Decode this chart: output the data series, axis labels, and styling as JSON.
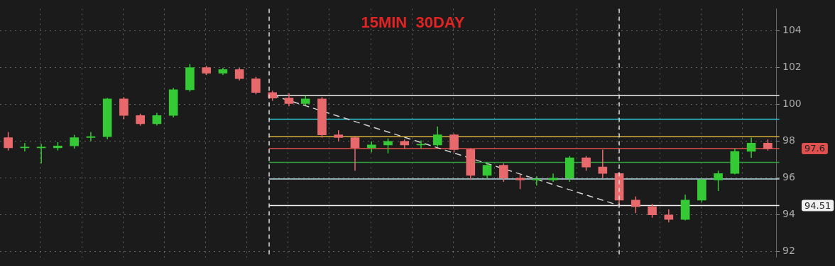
{
  "chart_data": {
    "type": "candlestick",
    "title": "15MIN  30DAY",
    "categories": [
      null,
      null,
      null,
      null,
      null,
      null,
      null,
      null,
      null,
      null,
      null,
      null,
      null,
      null,
      null,
      null,
      null,
      null,
      null,
      null,
      null,
      null,
      null,
      null,
      null,
      null,
      null,
      null,
      null,
      null,
      null,
      null,
      null,
      null,
      null,
      null,
      null,
      null,
      null,
      null,
      null,
      null,
      null,
      null,
      null,
      null,
      null
    ],
    "ohlc": [
      [
        98.2,
        98.5,
        97.5,
        97.65
      ],
      [
        97.65,
        97.9,
        97.45,
        97.65
      ],
      [
        97.65,
        97.85,
        96.8,
        97.65
      ],
      [
        97.65,
        97.95,
        97.5,
        97.75
      ],
      [
        97.75,
        98.35,
        97.6,
        98.2
      ],
      [
        98.2,
        98.5,
        98.0,
        98.25
      ],
      [
        98.25,
        100.35,
        98.1,
        100.3
      ],
      [
        100.3,
        100.4,
        99.2,
        99.4
      ],
      [
        99.4,
        99.5,
        98.85,
        98.95
      ],
      [
        98.95,
        99.55,
        98.85,
        99.4
      ],
      [
        99.4,
        100.9,
        99.3,
        100.8
      ],
      [
        100.8,
        102.2,
        100.7,
        102.0
      ],
      [
        102.0,
        102.1,
        101.6,
        101.7
      ],
      [
        101.7,
        102.0,
        101.6,
        101.9
      ],
      [
        101.9,
        102.0,
        101.3,
        101.4
      ],
      [
        101.4,
        101.5,
        100.55,
        100.65
      ],
      [
        100.65,
        100.75,
        100.2,
        100.35
      ],
      [
        100.35,
        100.6,
        99.9,
        100.05
      ],
      [
        100.05,
        100.5,
        99.95,
        100.3
      ],
      [
        100.3,
        100.4,
        98.2,
        98.35
      ],
      [
        98.35,
        98.6,
        98.0,
        98.2
      ],
      [
        98.2,
        98.3,
        96.4,
        97.65
      ],
      [
        97.65,
        98.0,
        97.4,
        97.8
      ],
      [
        97.8,
        98.15,
        97.35,
        98.0
      ],
      [
        98.0,
        98.1,
        97.6,
        97.8
      ],
      [
        97.8,
        98.05,
        97.6,
        97.8
      ],
      [
        97.8,
        98.8,
        97.7,
        98.35
      ],
      [
        98.35,
        98.4,
        97.4,
        97.55
      ],
      [
        97.55,
        97.6,
        95.9,
        96.15
      ],
      [
        96.15,
        96.85,
        95.95,
        96.7
      ],
      [
        96.7,
        96.8,
        95.8,
        96.0
      ],
      [
        96.0,
        96.2,
        95.4,
        95.9
      ],
      [
        95.9,
        96.1,
        95.6,
        95.9
      ],
      [
        95.9,
        96.25,
        95.8,
        96.0
      ],
      [
        96.0,
        97.2,
        95.8,
        97.1
      ],
      [
        97.1,
        97.2,
        96.4,
        96.6
      ],
      [
        96.6,
        97.55,
        96.0,
        96.25
      ],
      [
        96.25,
        96.3,
        94.5,
        94.8
      ],
      [
        94.8,
        95.0,
        94.1,
        94.45
      ],
      [
        94.45,
        94.6,
        93.85,
        94.0
      ],
      [
        94.0,
        94.3,
        93.6,
        93.75
      ],
      [
        93.75,
        95.1,
        93.7,
        94.8
      ],
      [
        94.8,
        96.0,
        94.7,
        95.9
      ],
      [
        95.9,
        96.4,
        95.3,
        96.25
      ],
      [
        96.25,
        97.6,
        96.2,
        97.45
      ],
      [
        97.45,
        98.2,
        97.1,
        97.9
      ],
      [
        97.9,
        98.1,
        97.5,
        97.6
      ]
    ],
    "series": [
      {
        "type": "line",
        "color": "#d0d0d0",
        "line_style": "dashed",
        "values": [
          null,
          null,
          null,
          null,
          null,
          null,
          null,
          null,
          null,
          null,
          null,
          null,
          null,
          null,
          null,
          null,
          100.5,
          null,
          null,
          null,
          null,
          null,
          null,
          null,
          null,
          null,
          null,
          null,
          null,
          null,
          null,
          null,
          null,
          null,
          null,
          null,
          null,
          94.51,
          null,
          null,
          null,
          null,
          null,
          null,
          null,
          null,
          null
        ]
      }
    ],
    "ref_lines": [
      {
        "axis": "y",
        "value": 100.5,
        "color": "#f0f0f0"
      },
      {
        "axis": "y",
        "value": 99.2,
        "color": "#29c5d6"
      },
      {
        "axis": "y",
        "value": 98.25,
        "color": "#d8b23a"
      },
      {
        "axis": "y",
        "value": 97.6,
        "color": "#e0504f",
        "label": "97.6"
      },
      {
        "axis": "y",
        "value": 96.85,
        "color": "#2f9e3f"
      },
      {
        "axis": "y",
        "value": 95.95,
        "color": "#b9dbe6"
      },
      {
        "axis": "y",
        "value": 94.51,
        "color": "#f0f0f0",
        "label": "94.51"
      }
    ],
    "ylim": [
      91.7,
      105.2
    ],
    "yticks": [
      92,
      94,
      96,
      98,
      100,
      102,
      104
    ],
    "tick_labels": "y",
    "grid": true,
    "legend": false
  }
}
